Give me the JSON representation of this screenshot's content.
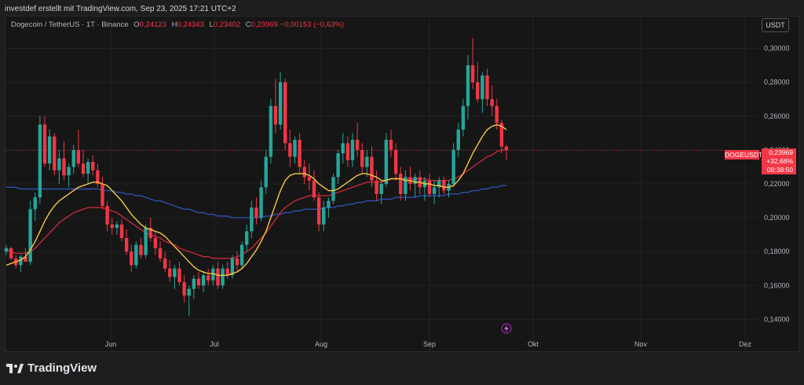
{
  "header": {
    "attribution": "investdef erstellt mit TradingView.com, Sep 23, 2025 17:21 UTC+2"
  },
  "legend": {
    "symbol": "Dogecoin / TetherUS · 1T · Binance",
    "o_label": "O",
    "o_value": "0,24123",
    "h_label": "H",
    "h_value": "0,24343",
    "l_label": "L",
    "l_value": "0,23402",
    "c_label": "C",
    "c_value": "0,23969",
    "change": "−0,00153 (−0,63%)"
  },
  "currency_button": "USDT",
  "price_tag": {
    "symbol": "DOGEUSDT",
    "price": "0,23969",
    "percent": "+32,68%",
    "countdown": "08:38:50"
  },
  "brand": "TradingView",
  "colors": {
    "up": "#26a69a",
    "down": "#f23645",
    "ma_yellow": "#f5c842",
    "ma_red": "#c62838",
    "ma_blue": "#2f4fb0",
    "background": "#161616"
  },
  "icons": [
    "tradingview-logo-icon",
    "lightning-icon"
  ],
  "chart_data": {
    "type": "candlestick",
    "y_ticks": [
      "0,30000",
      "0,28000",
      "0,26000",
      "0,24000",
      "0,22000",
      "0,20000",
      "0,18000",
      "0,16000",
      "0,14000"
    ],
    "ylim": [
      0.13,
      0.31
    ],
    "x_ticks": [
      "Jun",
      "Jul",
      "Aug",
      "Sep",
      "Okt",
      "Nov",
      "Dez"
    ],
    "last_price": 0.23969,
    "candles": [
      [
        0.18,
        0.184,
        0.178,
        0.182
      ],
      [
        0.182,
        0.183,
        0.175,
        0.176
      ],
      [
        0.176,
        0.178,
        0.17,
        0.172
      ],
      [
        0.172,
        0.178,
        0.168,
        0.177
      ],
      [
        0.177,
        0.182,
        0.174,
        0.174
      ],
      [
        0.174,
        0.21,
        0.172,
        0.205
      ],
      [
        0.205,
        0.215,
        0.198,
        0.212
      ],
      [
        0.212,
        0.26,
        0.208,
        0.255
      ],
      [
        0.255,
        0.26,
        0.23,
        0.232
      ],
      [
        0.232,
        0.252,
        0.228,
        0.248
      ],
      [
        0.248,
        0.25,
        0.225,
        0.228
      ],
      [
        0.228,
        0.24,
        0.22,
        0.235
      ],
      [
        0.235,
        0.245,
        0.222,
        0.225
      ],
      [
        0.225,
        0.232,
        0.218,
        0.23
      ],
      [
        0.23,
        0.243,
        0.226,
        0.24
      ],
      [
        0.24,
        0.252,
        0.23,
        0.232
      ],
      [
        0.232,
        0.24,
        0.224,
        0.226
      ],
      [
        0.226,
        0.235,
        0.22,
        0.233
      ],
      [
        0.233,
        0.237,
        0.225,
        0.228
      ],
      [
        0.228,
        0.232,
        0.218,
        0.22
      ],
      [
        0.22,
        0.224,
        0.205,
        0.207
      ],
      [
        0.207,
        0.21,
        0.192,
        0.196
      ],
      [
        0.196,
        0.2,
        0.19,
        0.194
      ],
      [
        0.194,
        0.198,
        0.19,
        0.196
      ],
      [
        0.196,
        0.199,
        0.186,
        0.188
      ],
      [
        0.188,
        0.193,
        0.178,
        0.18
      ],
      [
        0.18,
        0.184,
        0.168,
        0.172
      ],
      [
        0.172,
        0.186,
        0.17,
        0.184
      ],
      [
        0.184,
        0.188,
        0.176,
        0.178
      ],
      [
        0.178,
        0.196,
        0.176,
        0.194
      ],
      [
        0.194,
        0.2,
        0.186,
        0.188
      ],
      [
        0.188,
        0.192,
        0.178,
        0.182
      ],
      [
        0.182,
        0.186,
        0.174,
        0.176
      ],
      [
        0.176,
        0.18,
        0.168,
        0.17
      ],
      [
        0.17,
        0.175,
        0.162,
        0.165
      ],
      [
        0.165,
        0.172,
        0.158,
        0.17
      ],
      [
        0.17,
        0.174,
        0.16,
        0.162
      ],
      [
        0.162,
        0.166,
        0.15,
        0.154
      ],
      [
        0.154,
        0.16,
        0.142,
        0.158
      ],
      [
        0.158,
        0.166,
        0.152,
        0.164
      ],
      [
        0.164,
        0.168,
        0.158,
        0.16
      ],
      [
        0.16,
        0.168,
        0.156,
        0.166
      ],
      [
        0.166,
        0.17,
        0.16,
        0.163
      ],
      [
        0.163,
        0.172,
        0.16,
        0.17
      ],
      [
        0.17,
        0.174,
        0.158,
        0.16
      ],
      [
        0.16,
        0.172,
        0.158,
        0.17
      ],
      [
        0.17,
        0.174,
        0.164,
        0.166
      ],
      [
        0.166,
        0.178,
        0.164,
        0.176
      ],
      [
        0.176,
        0.18,
        0.168,
        0.172
      ],
      [
        0.172,
        0.186,
        0.17,
        0.184
      ],
      [
        0.184,
        0.196,
        0.18,
        0.192
      ],
      [
        0.192,
        0.21,
        0.188,
        0.206
      ],
      [
        0.206,
        0.212,
        0.196,
        0.2
      ],
      [
        0.2,
        0.222,
        0.198,
        0.218
      ],
      [
        0.218,
        0.24,
        0.214,
        0.236
      ],
      [
        0.236,
        0.27,
        0.232,
        0.266
      ],
      [
        0.266,
        0.282,
        0.25,
        0.255
      ],
      [
        0.255,
        0.286,
        0.252,
        0.28
      ],
      [
        0.28,
        0.282,
        0.24,
        0.244
      ],
      [
        0.244,
        0.252,
        0.23,
        0.236
      ],
      [
        0.236,
        0.248,
        0.232,
        0.246
      ],
      [
        0.246,
        0.25,
        0.226,
        0.23
      ],
      [
        0.23,
        0.234,
        0.22,
        0.224
      ],
      [
        0.224,
        0.232,
        0.216,
        0.222
      ],
      [
        0.222,
        0.228,
        0.21,
        0.212
      ],
      [
        0.212,
        0.215,
        0.192,
        0.196
      ],
      [
        0.196,
        0.21,
        0.192,
        0.206
      ],
      [
        0.206,
        0.212,
        0.2,
        0.21
      ],
      [
        0.21,
        0.226,
        0.208,
        0.224
      ],
      [
        0.224,
        0.24,
        0.22,
        0.238
      ],
      [
        0.238,
        0.25,
        0.232,
        0.244
      ],
      [
        0.244,
        0.248,
        0.23,
        0.234
      ],
      [
        0.234,
        0.25,
        0.23,
        0.246
      ],
      [
        0.246,
        0.256,
        0.236,
        0.24
      ],
      [
        0.24,
        0.244,
        0.226,
        0.23
      ],
      [
        0.23,
        0.24,
        0.224,
        0.236
      ],
      [
        0.236,
        0.242,
        0.218,
        0.222
      ],
      [
        0.222,
        0.228,
        0.21,
        0.214
      ],
      [
        0.214,
        0.222,
        0.208,
        0.22
      ],
      [
        0.22,
        0.25,
        0.218,
        0.246
      ],
      [
        0.246,
        0.252,
        0.236,
        0.24
      ],
      [
        0.24,
        0.244,
        0.222,
        0.226
      ],
      [
        0.226,
        0.23,
        0.21,
        0.214
      ],
      [
        0.214,
        0.228,
        0.21,
        0.224
      ],
      [
        0.224,
        0.23,
        0.216,
        0.22
      ],
      [
        0.22,
        0.226,
        0.212,
        0.224
      ],
      [
        0.224,
        0.228,
        0.214,
        0.218
      ],
      [
        0.218,
        0.224,
        0.21,
        0.222
      ],
      [
        0.222,
        0.226,
        0.212,
        0.214
      ],
      [
        0.214,
        0.222,
        0.208,
        0.218
      ],
      [
        0.218,
        0.224,
        0.212,
        0.222
      ],
      [
        0.222,
        0.224,
        0.214,
        0.216
      ],
      [
        0.216,
        0.222,
        0.212,
        0.22
      ],
      [
        0.22,
        0.244,
        0.218,
        0.24
      ],
      [
        0.24,
        0.256,
        0.236,
        0.252
      ],
      [
        0.252,
        0.27,
        0.248,
        0.266
      ],
      [
        0.266,
        0.296,
        0.258,
        0.29
      ],
      [
        0.29,
        0.306,
        0.276,
        0.28
      ],
      [
        0.28,
        0.292,
        0.268,
        0.27
      ],
      [
        0.27,
        0.286,
        0.262,
        0.284
      ],
      [
        0.284,
        0.288,
        0.266,
        0.27
      ],
      [
        0.27,
        0.278,
        0.26,
        0.266
      ],
      [
        0.266,
        0.27,
        0.252,
        0.256
      ],
      [
        0.256,
        0.258,
        0.238,
        0.242
      ],
      [
        0.242,
        0.243,
        0.234,
        0.24
      ]
    ],
    "ma_yellow": [
      0.172,
      0.173,
      0.174,
      0.175,
      0.177,
      0.181,
      0.186,
      0.192,
      0.198,
      0.203,
      0.207,
      0.21,
      0.212,
      0.214,
      0.216,
      0.218,
      0.219,
      0.22,
      0.221,
      0.221,
      0.22,
      0.219,
      0.216,
      0.213,
      0.21,
      0.206,
      0.202,
      0.199,
      0.196,
      0.194,
      0.193,
      0.192,
      0.191,
      0.189,
      0.186,
      0.183,
      0.18,
      0.177,
      0.174,
      0.171,
      0.169,
      0.168,
      0.167,
      0.167,
      0.166,
      0.166,
      0.166,
      0.167,
      0.168,
      0.17,
      0.173,
      0.177,
      0.181,
      0.186,
      0.192,
      0.2,
      0.208,
      0.216,
      0.222,
      0.225,
      0.226,
      0.226,
      0.226,
      0.225,
      0.223,
      0.22,
      0.218,
      0.216,
      0.216,
      0.217,
      0.219,
      0.221,
      0.223,
      0.225,
      0.226,
      0.226,
      0.225,
      0.224,
      0.222,
      0.222,
      0.223,
      0.223,
      0.223,
      0.222,
      0.222,
      0.221,
      0.221,
      0.22,
      0.22,
      0.219,
      0.219,
      0.218,
      0.218,
      0.219,
      0.222,
      0.226,
      0.232,
      0.238,
      0.243,
      0.248,
      0.252,
      0.254,
      0.255,
      0.254,
      0.252
    ],
    "ma_red": [
      0.181,
      0.18,
      0.179,
      0.179,
      0.179,
      0.18,
      0.182,
      0.185,
      0.188,
      0.191,
      0.194,
      0.197,
      0.199,
      0.201,
      0.203,
      0.204,
      0.205,
      0.206,
      0.206,
      0.206,
      0.206,
      0.205,
      0.204,
      0.203,
      0.201,
      0.199,
      0.197,
      0.195,
      0.193,
      0.191,
      0.19,
      0.189,
      0.188,
      0.186,
      0.185,
      0.184,
      0.182,
      0.181,
      0.18,
      0.179,
      0.178,
      0.177,
      0.177,
      0.176,
      0.176,
      0.176,
      0.176,
      0.176,
      0.177,
      0.178,
      0.18,
      0.182,
      0.185,
      0.188,
      0.191,
      0.195,
      0.199,
      0.203,
      0.206,
      0.208,
      0.21,
      0.211,
      0.212,
      0.213,
      0.213,
      0.213,
      0.213,
      0.213,
      0.214,
      0.215,
      0.216,
      0.217,
      0.218,
      0.219,
      0.22,
      0.221,
      0.221,
      0.221,
      0.221,
      0.222,
      0.223,
      0.223,
      0.223,
      0.223,
      0.223,
      0.223,
      0.223,
      0.223,
      0.222,
      0.222,
      0.222,
      0.222,
      0.222,
      0.223,
      0.224,
      0.226,
      0.228,
      0.23,
      0.232,
      0.234,
      0.236,
      0.237,
      0.239,
      0.24,
      0.24
    ],
    "ma_blue": [
      0.218,
      0.218,
      0.218,
      0.217,
      0.217,
      0.217,
      0.217,
      0.217,
      0.217,
      0.217,
      0.217,
      0.217,
      0.217,
      0.217,
      0.217,
      0.217,
      0.217,
      0.217,
      0.217,
      0.217,
      0.216,
      0.216,
      0.216,
      0.215,
      0.215,
      0.214,
      0.214,
      0.213,
      0.213,
      0.212,
      0.211,
      0.21,
      0.21,
      0.209,
      0.208,
      0.207,
      0.206,
      0.205,
      0.205,
      0.204,
      0.203,
      0.203,
      0.202,
      0.202,
      0.201,
      0.201,
      0.201,
      0.2,
      0.2,
      0.2,
      0.2,
      0.2,
      0.2,
      0.2,
      0.201,
      0.201,
      0.202,
      0.202,
      0.203,
      0.203,
      0.204,
      0.204,
      0.205,
      0.205,
      0.205,
      0.205,
      0.206,
      0.206,
      0.206,
      0.207,
      0.207,
      0.208,
      0.208,
      0.209,
      0.209,
      0.21,
      0.21,
      0.21,
      0.211,
      0.211,
      0.211,
      0.212,
      0.212,
      0.212,
      0.212,
      0.212,
      0.213,
      0.213,
      0.213,
      0.213,
      0.213,
      0.213,
      0.214,
      0.214,
      0.214,
      0.215,
      0.215,
      0.216,
      0.216,
      0.217,
      0.217,
      0.218,
      0.218,
      0.219,
      0.219
    ]
  }
}
